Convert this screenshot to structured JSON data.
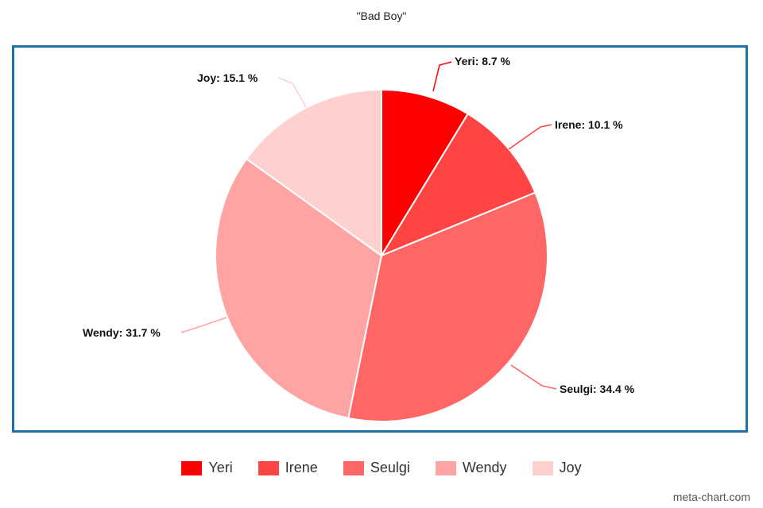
{
  "chart_data": {
    "type": "pie",
    "title": "\"Bad Boy\"",
    "slices": [
      {
        "label": "Yeri",
        "value": 8.7,
        "text": "Yeri: 8.7 %",
        "color": "#ff0000"
      },
      {
        "label": "Irene",
        "value": 10.1,
        "text": "Irene: 10.1 %",
        "color": "#ff4444"
      },
      {
        "label": "Seulgi",
        "value": 34.4,
        "text": "Seulgi: 34.4 %",
        "color": "#ff6666"
      },
      {
        "label": "Wendy",
        "value": 31.7,
        "text": "Wendy: 31.7 %",
        "color": "#ffa3a3"
      },
      {
        "label": "Joy",
        "value": 15.1,
        "text": "Joy: 15.1 %",
        "color": "#ffd0d0"
      }
    ],
    "legend_position": "bottom"
  },
  "watermark": "meta-chart.com"
}
